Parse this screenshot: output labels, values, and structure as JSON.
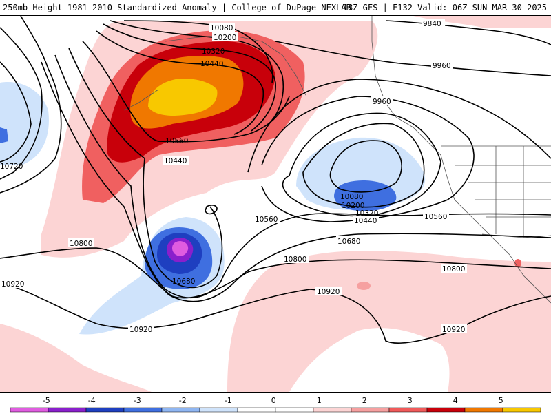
{
  "header": {
    "title_left": "250mb Height 1981-2010 Standardized Anomaly | College of DuPage NEXLAB",
    "title_right": "18Z GFS | F132 Valid: 06Z SUN MAR 30 2025"
  },
  "contours": {
    "c9840": "9840",
    "c9960a": "9960",
    "c9960b": "9960",
    "c10080a": "10080",
    "c10200a": "10200",
    "c10320a": "10320",
    "c10440a": "10440",
    "c10560a": "10560",
    "c10440b": "10440",
    "c10720": "10720",
    "c10080b": "10080",
    "c10200b": "10200",
    "c10320b": "10320",
    "c10440c": "10440",
    "c10560b": "10560",
    "c10560c": "10560",
    "c10680a": "10680",
    "c10680b": "10680",
    "c10800a": "10800",
    "c10800b": "10800",
    "c10800c": "10800",
    "c10920a": "10920",
    "c10920b": "10920",
    "c10920c": "10920",
    "c10920d": "10920"
  },
  "colorbar": {
    "ticks": [
      "-5",
      "-4",
      "-3",
      "-2",
      "-1",
      "0",
      "1",
      "2",
      "3",
      "4",
      "5"
    ],
    "colors": [
      "#e05ce0",
      "#8a1fcc",
      "#1e3fc0",
      "#3f6fe0",
      "#8fb6f2",
      "#cfe3fb",
      "#ffffff",
      "#ffffff",
      "#fcd4d4",
      "#f6a0a0",
      "#f05a5a",
      "#c8000a",
      "#f07800",
      "#f8c800"
    ]
  }
}
